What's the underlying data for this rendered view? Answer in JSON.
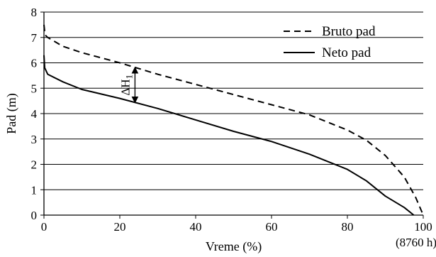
{
  "chart_data": {
    "type": "line",
    "xlabel": "Vreme (%)",
    "ylabel": "Pad (m)",
    "x_extra_label": "(8760 h)",
    "xlim": [
      0,
      100
    ],
    "ylim": [
      0,
      8
    ],
    "x_ticks": [
      0,
      20,
      40,
      60,
      80,
      100
    ],
    "y_ticks": [
      0,
      1,
      2,
      3,
      4,
      5,
      6,
      7,
      8
    ],
    "grid": "horizontal",
    "legend_position": "top-right",
    "series": [
      {
        "name": "Bruto pad",
        "style": "dashed",
        "color": "#000000",
        "points": [
          [
            0,
            7.5
          ],
          [
            0.3,
            7.1
          ],
          [
            1,
            7.0
          ],
          [
            5,
            6.65
          ],
          [
            10,
            6.4
          ],
          [
            20,
            6.0
          ],
          [
            30,
            5.55
          ],
          [
            40,
            5.15
          ],
          [
            50,
            4.75
          ],
          [
            60,
            4.35
          ],
          [
            70,
            3.95
          ],
          [
            80,
            3.35
          ],
          [
            85,
            2.95
          ],
          [
            90,
            2.35
          ],
          [
            95,
            1.5
          ],
          [
            98,
            0.7
          ],
          [
            100,
            0.0
          ]
        ]
      },
      {
        "name": "Neto pad",
        "style": "solid",
        "color": "#000000",
        "points": [
          [
            0,
            6.3
          ],
          [
            0.2,
            5.8
          ],
          [
            1,
            5.55
          ],
          [
            5,
            5.25
          ],
          [
            10,
            4.95
          ],
          [
            20,
            4.6
          ],
          [
            30,
            4.2
          ],
          [
            40,
            3.75
          ],
          [
            50,
            3.3
          ],
          [
            60,
            2.9
          ],
          [
            70,
            2.4
          ],
          [
            80,
            1.8
          ],
          [
            85,
            1.35
          ],
          [
            90,
            0.75
          ],
          [
            95,
            0.3
          ],
          [
            97.5,
            0.0
          ]
        ]
      }
    ],
    "annotation": {
      "text": "ΔH",
      "subscript": "1",
      "x": 24,
      "y_top": 5.85,
      "y_bottom": 4.4
    }
  }
}
